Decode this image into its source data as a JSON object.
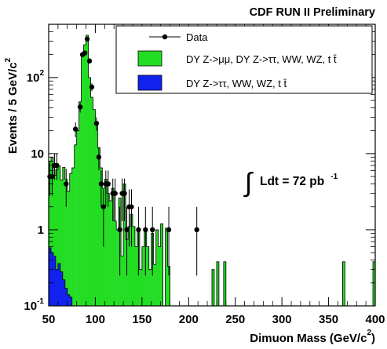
{
  "chart_data": {
    "type": "bar",
    "title": "CDF RUN II Preliminary",
    "xlabel": "Dimuon Mass (GeV/c",
    "xlabel_exp": "2",
    "xlabel_close": ")",
    "ylabel": "Events / 5 GeV/c",
    "ylabel_exp": "2",
    "annotation": {
      "label": "Ldt = 72 pb",
      "exp": "-1"
    },
    "x_scale": "linear",
    "y_scale": "log",
    "xlim": [
      50,
      400
    ],
    "ylim": [
      0.1,
      500
    ],
    "x_ticks": [
      {
        "value": 50,
        "label": "50"
      },
      {
        "value": 100,
        "label": "100"
      },
      {
        "value": 150,
        "label": "150"
      },
      {
        "value": 200,
        "label": "200"
      },
      {
        "value": 250,
        "label": "250"
      },
      {
        "value": 300,
        "label": "300"
      },
      {
        "value": 350,
        "label": "350"
      },
      {
        "value": 400,
        "label": "400"
      }
    ],
    "y_ticks": [
      {
        "value": 0.1,
        "base": "10",
        "exp": "-1"
      },
      {
        "value": 1,
        "base": "1",
        "exp": ""
      },
      {
        "value": 10,
        "base": "10",
        "exp": ""
      },
      {
        "value": 100,
        "base": "10",
        "exp": "2"
      }
    ],
    "legend": {
      "placement": "top-right",
      "entries": [
        {
          "label": "Data"
        },
        {
          "label": "DY Z->μμ, DY Z->ττ, WW, WZ, t t̄"
        },
        {
          "label": "DY Z->ττ, WW, WZ, t t̄"
        }
      ]
    },
    "colors": {
      "signal": "#22dd22",
      "background": "#1122ee",
      "data": "#000000"
    },
    "series": [
      {
        "name": "DY Z->μμ, DY Z->ττ, WW, WZ, t t̄",
        "bin_width": 2.5,
        "bins": [
          [
            50,
            7.8
          ],
          [
            52.5,
            9
          ],
          [
            55,
            5.2
          ],
          [
            57.5,
            6.2
          ],
          [
            60,
            6.9
          ],
          [
            62.5,
            4.5
          ],
          [
            65,
            6.6
          ],
          [
            67.5,
            4.6
          ],
          [
            70,
            3.2
          ],
          [
            72.5,
            5.5
          ],
          [
            75,
            6.5
          ],
          [
            77.5,
            13
          ],
          [
            80,
            20
          ],
          [
            82.5,
            48
          ],
          [
            85,
            200
          ],
          [
            87.5,
            270
          ],
          [
            90,
            360
          ],
          [
            92.5,
            100
          ],
          [
            95,
            55
          ],
          [
            97.5,
            38
          ],
          [
            100,
            25
          ],
          [
            102.5,
            12
          ],
          [
            105,
            6.5
          ],
          [
            107.5,
            3.5
          ],
          [
            110,
            4.6
          ],
          [
            112.5,
            3.0
          ],
          [
            115,
            2.4
          ],
          [
            117.5,
            3.5
          ],
          [
            120,
            1.3
          ],
          [
            122.5,
            1.0
          ],
          [
            125,
            2.6
          ],
          [
            127.5,
            0.45
          ],
          [
            130,
            4.0
          ],
          [
            132.5,
            0.75
          ],
          [
            135,
            1.1
          ],
          [
            137.5,
            1.6
          ],
          [
            140,
            1.1
          ],
          [
            142.5,
            0.6
          ],
          [
            145,
            1.0
          ],
          [
            147.5,
            0.3
          ],
          [
            150,
            0.6
          ],
          [
            152.5,
            0.95
          ],
          [
            155,
            0.6
          ],
          [
            157.5,
            0.3
          ],
          [
            160,
            0.9
          ],
          [
            162.5,
            0.35
          ],
          [
            165,
            1.0
          ],
          [
            167.5,
            0.6
          ],
          [
            170,
            1.2
          ],
          [
            175,
            1.05
          ],
          [
            177.5,
            0.33
          ],
          [
            225,
            0.3
          ],
          [
            230,
            0.38
          ],
          [
            237.5,
            0.38
          ],
          [
            365,
            0.38
          ],
          [
            397.5,
            0.38
          ]
        ]
      },
      {
        "name": "DY Z->ττ, WW, WZ, t t̄",
        "bin_width": 2.5,
        "bins": [
          [
            50,
            0.58
          ],
          [
            52.5,
            0.5
          ],
          [
            55,
            0.45
          ],
          [
            57.5,
            0.3
          ],
          [
            60,
            0.36
          ],
          [
            62.5,
            0.28
          ],
          [
            65,
            0.22
          ],
          [
            67.5,
            0.17
          ],
          [
            70,
            0.14
          ],
          [
            72.5,
            0.13
          ]
        ]
      }
    ],
    "data_points": [
      {
        "x": 51.25,
        "y": 5.0,
        "lo": 2.8,
        "hi": 7.5
      },
      {
        "x": 53.75,
        "y": 5.0,
        "lo": 2.8,
        "hi": 7.5
      },
      {
        "x": 56.25,
        "y": 7.0,
        "lo": 4.5,
        "hi": 9.9
      },
      {
        "x": 58.75,
        "y": 7.0,
        "lo": 4.5,
        "hi": 9.9
      },
      {
        "x": 68.75,
        "y": 4.0,
        "lo": 2.0,
        "hi": 6.3
      },
      {
        "x": 78.75,
        "y": 21,
        "lo": 16.4,
        "hi": 25.6
      },
      {
        "x": 83.75,
        "y": 41,
        "lo": 34.6,
        "hi": 47.4
      },
      {
        "x": 86.25,
        "y": 200,
        "lo": 186,
        "hi": 214
      },
      {
        "x": 88.75,
        "y": 210,
        "lo": 196,
        "hi": 224
      },
      {
        "x": 91.25,
        "y": 320,
        "lo": 302,
        "hi": 338
      },
      {
        "x": 93.75,
        "y": 165,
        "lo": 152,
        "hi": 178
      },
      {
        "x": 96.25,
        "y": 75,
        "lo": 66,
        "hi": 84
      },
      {
        "x": 101.25,
        "y": 25,
        "lo": 20,
        "hi": 30
      },
      {
        "x": 103.75,
        "y": 9,
        "lo": 6,
        "hi": 12
      },
      {
        "x": 106.25,
        "y": 4,
        "lo": 2,
        "hi": 6
      },
      {
        "x": 108.75,
        "y": 2,
        "lo": 0.6,
        "hi": 3.4
      },
      {
        "x": 111.25,
        "y": 4,
        "lo": 2,
        "hi": 6
      },
      {
        "x": 113.75,
        "y": 4,
        "lo": 2,
        "hi": 6
      },
      {
        "x": 118.75,
        "y": 3,
        "lo": 1.3,
        "hi": 4.7
      },
      {
        "x": 121.25,
        "y": 3,
        "lo": 1.3,
        "hi": 4.7
      },
      {
        "x": 126.25,
        "y": 1,
        "lo": 0.25,
        "hi": 2
      },
      {
        "x": 128.75,
        "y": 3,
        "lo": 1.3,
        "hi": 4.7
      },
      {
        "x": 131.25,
        "y": 3,
        "lo": 1.3,
        "hi": 4.7
      },
      {
        "x": 133.75,
        "y": 1,
        "lo": 0.25,
        "hi": 2
      },
      {
        "x": 136.25,
        "y": 2,
        "lo": 0.6,
        "hi": 3.4
      },
      {
        "x": 138.75,
        "y": 2,
        "lo": 0.6,
        "hi": 3.4
      },
      {
        "x": 146.25,
        "y": 1,
        "lo": 0.25,
        "hi": 2
      },
      {
        "x": 153.75,
        "y": 1,
        "lo": 0.25,
        "hi": 2
      },
      {
        "x": 161.25,
        "y": 1,
        "lo": 0.25,
        "hi": 2
      },
      {
        "x": 178.75,
        "y": 1,
        "lo": 0.25,
        "hi": 2
      },
      {
        "x": 208.75,
        "y": 1,
        "lo": 0.25,
        "hi": 2
      }
    ]
  }
}
